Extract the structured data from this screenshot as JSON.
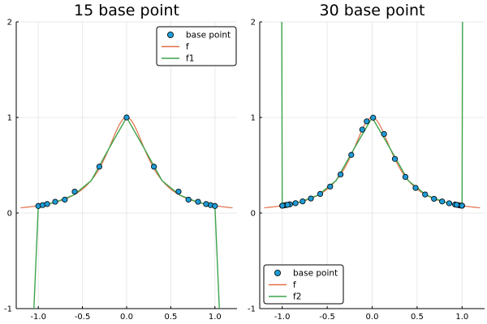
{
  "chart_data": [
    {
      "type": "scatter+line",
      "title": "15 base point",
      "xlim": [
        -1.25,
        1.25
      ],
      "ylim": [
        -1,
        2
      ],
      "xticks": [
        -1.0,
        -0.5,
        0.0,
        0.5,
        1.0
      ],
      "xtick_labels": [
        "-1.0",
        "-0.5",
        "0.0",
        "0.5",
        "1.0"
      ],
      "yticks": [
        -1,
        0,
        1,
        2
      ],
      "ytick_labels": [
        "-1",
        "0",
        "1",
        "2"
      ],
      "grid": true,
      "legend": {
        "placement": "top-right",
        "entries": [
          "base point",
          "f",
          "f1"
        ]
      },
      "series": [
        {
          "name": "base point",
          "kind": "scatter",
          "x": [
            -1.0,
            -0.951,
            -0.809,
            -0.588,
            -0.309,
            0.0,
            0.309,
            0.588,
            0.809,
            0.951,
            1.0,
            -0.7,
            0.7,
            -0.9,
            0.9
          ],
          "y": [
            0.074,
            0.083,
            0.118,
            0.224,
            0.485,
            1.0,
            0.485,
            0.224,
            0.118,
            0.083,
            0.074,
            0.14,
            0.14,
            0.094,
            0.094
          ]
        },
        {
          "name": "f",
          "kind": "line",
          "color": "#e26f46",
          "function": "1/(1+12x^2)",
          "x_range": [
            -1.2,
            1.2
          ]
        },
        {
          "name": "f1",
          "kind": "line",
          "color": "#3da44d",
          "x": [
            -1.05,
            -1.0,
            -0.95,
            -0.9,
            -0.8,
            -0.6,
            -0.4,
            -0.2,
            0.0,
            0.2,
            0.4,
            0.6,
            0.8,
            0.9,
            0.95,
            1.0,
            1.05
          ],
          "y": [
            -1.0,
            0.074,
            0.083,
            0.093,
            0.115,
            0.188,
            0.34,
            0.675,
            1.0,
            0.675,
            0.34,
            0.188,
            0.115,
            0.093,
            0.083,
            0.074,
            -1.0
          ]
        }
      ]
    },
    {
      "type": "scatter+line",
      "title": "30 base point",
      "xlim": [
        -1.25,
        1.25
      ],
      "ylim": [
        -1,
        2
      ],
      "xticks": [
        -1.0,
        -0.5,
        0.0,
        0.5,
        1.0
      ],
      "xtick_labels": [
        "-1.0",
        "-0.5",
        "0.0",
        "0.5",
        "1.0"
      ],
      "yticks": [
        -1,
        0,
        1,
        2
      ],
      "ytick_labels": [
        "-1",
        "0",
        "1",
        "2"
      ],
      "grid": true,
      "legend": {
        "placement": "bottom-left",
        "entries": [
          "base point",
          "f",
          "f2"
        ]
      },
      "series": [
        {
          "name": "base point",
          "kind": "scatter",
          "x": [
            -1.0,
            -0.978,
            -0.956,
            -0.914,
            -0.852,
            -0.773,
            -0.681,
            -0.578,
            -0.467,
            -0.351,
            -0.232,
            -0.11,
            0.011,
            0.132,
            0.253,
            0.37,
            0.483,
            0.589,
            0.688,
            0.778,
            0.857,
            0.922,
            0.963,
            0.989,
            1.0,
            0.998,
            -0.998,
            0.94,
            -0.94,
            -0.06
          ],
          "y": [
            0.077,
            0.08,
            0.084,
            0.091,
            0.103,
            0.122,
            0.152,
            0.2,
            0.277,
            0.404,
            0.608,
            0.873,
            0.998,
            0.827,
            0.566,
            0.378,
            0.263,
            0.194,
            0.149,
            0.121,
            0.102,
            0.089,
            0.082,
            0.078,
            0.077,
            0.077,
            0.077,
            0.086,
            0.086,
            0.959
          ]
        },
        {
          "name": "f",
          "kind": "line",
          "color": "#e26f46",
          "function": "1/(1+12x^2)",
          "x_range": [
            -1.2,
            1.2
          ]
        },
        {
          "name": "f2",
          "kind": "line",
          "color": "#3da44d",
          "x": [
            -1.005,
            -1.0,
            -0.98,
            -0.9,
            -0.8,
            -0.6,
            -0.4,
            -0.2,
            0.0,
            0.2,
            0.4,
            0.6,
            0.8,
            0.9,
            0.98,
            1.0,
            1.005
          ],
          "y": [
            2.0,
            0.077,
            0.079,
            0.093,
            0.115,
            0.188,
            0.34,
            0.675,
            1.0,
            0.675,
            0.34,
            0.188,
            0.115,
            0.093,
            0.079,
            0.077,
            2.0
          ]
        }
      ]
    }
  ]
}
